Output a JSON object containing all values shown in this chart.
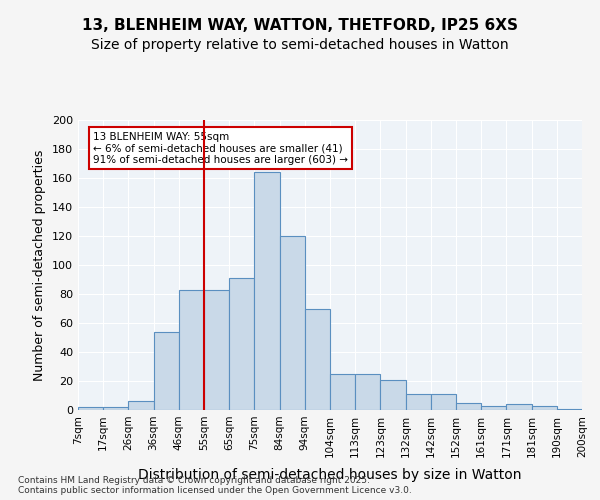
{
  "title_line1": "13, BLENHEIM WAY, WATTON, THETFORD, IP25 6XS",
  "title_line2": "Size of property relative to semi-detached houses in Watton",
  "xlabel": "Distribution of semi-detached houses by size in Watton",
  "ylabel": "Number of semi-detached properties",
  "footer": "Contains HM Land Registry data © Crown copyright and database right 2025.\nContains public sector information licensed under the Open Government Licence v3.0.",
  "bin_labels": [
    "7sqm",
    "17sqm",
    "26sqm",
    "36sqm",
    "46sqm",
    "55sqm",
    "65sqm",
    "75sqm",
    "84sqm",
    "94sqm",
    "104sqm",
    "113sqm",
    "123sqm",
    "132sqm",
    "142sqm",
    "152sqm",
    "161sqm",
    "171sqm",
    "181sqm",
    "190sqm",
    "200sqm"
  ],
  "bar_values": [
    2,
    2,
    6,
    54,
    83,
    83,
    91,
    164,
    120,
    70,
    25,
    25,
    21,
    11,
    11,
    5,
    3,
    4,
    3,
    1
  ],
  "bar_color": "#c9d9e8",
  "bar_edge_color": "#5a8fc0",
  "property_line_x": 5,
  "annotation_text": "13 BLENHEIM WAY: 55sqm\n← 6% of semi-detached houses are smaller (41)\n91% of semi-detached houses are larger (603) →",
  "annotation_box_color": "#ffffff",
  "annotation_box_edge": "#cc0000",
  "vline_color": "#cc0000",
  "ylim": [
    0,
    200
  ],
  "yticks": [
    0,
    20,
    40,
    60,
    80,
    100,
    120,
    140,
    160,
    180,
    200
  ],
  "background_color": "#eef3f8",
  "grid_color": "#ffffff",
  "title_fontsize": 11,
  "subtitle_fontsize": 10,
  "xlabel_fontsize": 10,
  "ylabel_fontsize": 9
}
